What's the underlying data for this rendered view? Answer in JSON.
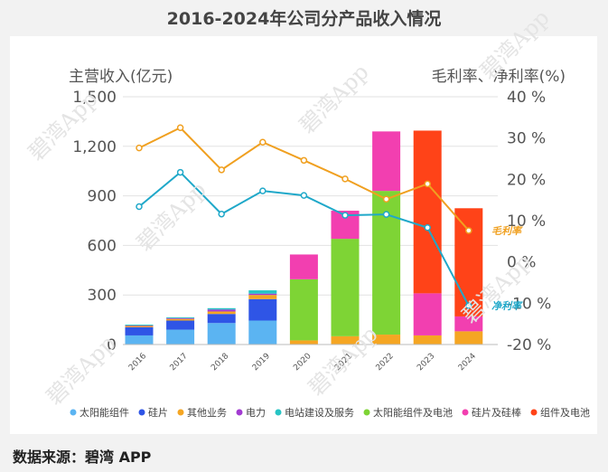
{
  "chart_data": {
    "type": "bar",
    "title": "2016-2024年公司分产品收入情况",
    "ylabel": "主营收入(亿元)",
    "y2label": "毛利率、净利率(%)",
    "ylim": [
      0,
      1500
    ],
    "y2lim": [
      -20,
      40
    ],
    "yticks": [
      "0",
      "300",
      "600",
      "900",
      "1,200",
      "1,500"
    ],
    "y2ticks": [
      "-20 %",
      "-10 %",
      "0 %",
      "10 %",
      "20 %",
      "30 %",
      "40 %"
    ],
    "categories": [
      "2016",
      "2017",
      "2018",
      "2019",
      "2020",
      "2021",
      "2022",
      "2023",
      "2024"
    ],
    "series": [
      {
        "name": "太阳能组件",
        "color": "#5bb4f2",
        "values": [
          55,
          90,
          130,
          145,
          0,
          0,
          0,
          0,
          0
        ]
      },
      {
        "name": "硅片",
        "color": "#2f55e6",
        "values": [
          50,
          55,
          55,
          130,
          0,
          0,
          0,
          0,
          0
        ]
      },
      {
        "name": "其他业务",
        "color": "#f5a623",
        "values": [
          8,
          10,
          15,
          25,
          25,
          50,
          60,
          55,
          80
        ]
      },
      {
        "name": "电力",
        "color": "#a23bd1",
        "values": [
          2,
          5,
          12,
          8,
          0,
          0,
          0,
          0,
          0
        ]
      },
      {
        "name": "电站建设及服务",
        "color": "#27c4c4",
        "values": [
          5,
          5,
          8,
          20,
          0,
          0,
          0,
          0,
          0
        ]
      },
      {
        "name": "太阳能组件及电池",
        "color": "#7ed435",
        "values": [
          0,
          0,
          0,
          0,
          370,
          590,
          870,
          0,
          0
        ]
      },
      {
        "name": "硅片及硅棒",
        "color": "#f23fb0",
        "values": [
          0,
          0,
          0,
          0,
          150,
          170,
          360,
          255,
          90
        ]
      },
      {
        "name": "组件及电池",
        "color": "#ff4318",
        "values": [
          0,
          0,
          0,
          0,
          0,
          0,
          0,
          985,
          655
        ]
      }
    ],
    "lines": [
      {
        "name": "毛利率",
        "color": "#f0a020",
        "values": [
          27.6,
          32.5,
          22.3,
          29.0,
          24.6,
          20.1,
          15.2,
          18.9,
          7.6
        ]
      },
      {
        "name": "净利率",
        "color": "#1fa8c9",
        "values": [
          13.4,
          21.7,
          11.6,
          17.2,
          16.1,
          11.3,
          11.5,
          8.3,
          -10.6
        ]
      }
    ]
  },
  "line_labels": {
    "gross": "毛利率",
    "net": "净利率"
  },
  "source": "数据来源：碧湾 APP",
  "watermark": "碧湾App",
  "colors": {
    "grid": "#e2e2e2",
    "axis": "#666666",
    "background": "#ffffff"
  }
}
